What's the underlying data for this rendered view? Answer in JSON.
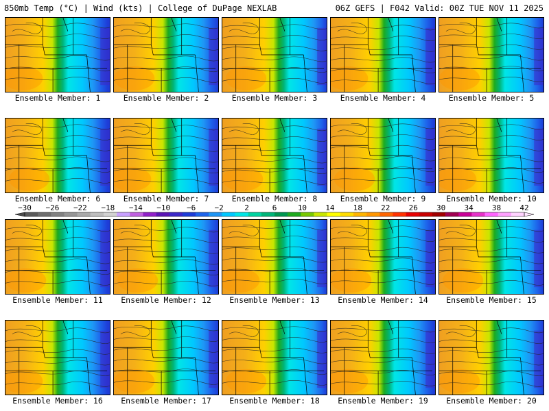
{
  "header": {
    "left": "850mb Temp (°C) | Wind (kts) | College of DuPage NEXLAB",
    "right": "06Z GEFS | F042 Valid: 00Z TUE NOV 11 2025"
  },
  "panel_label_prefix": "Ensemble Member: ",
  "members": [
    1,
    2,
    3,
    4,
    5,
    6,
    7,
    8,
    9,
    10,
    11,
    12,
    13,
    14,
    15,
    16,
    17,
    18,
    19,
    20
  ],
  "colorbar": {
    "ticks": [
      "-30",
      "-26",
      "-22",
      "-18",
      "-14",
      "-10",
      "-6",
      "-2",
      "2",
      "6",
      "10",
      "14",
      "18",
      "22",
      "26",
      "30",
      "34",
      "38",
      "42"
    ],
    "colors": [
      "#5a5a5a",
      "#6e6e6e",
      "#828282",
      "#969696",
      "#aaaaaa",
      "#bebebe",
      "#d2d2d2",
      "#c8a0ff",
      "#c060e0",
      "#9020c8",
      "#5a14b4",
      "#3c28c8",
      "#1e3cd7",
      "#1e64eb",
      "#1e96f5",
      "#00c8ff",
      "#00e6e6",
      "#00d2a0",
      "#00b478",
      "#009650",
      "#1eaa1e",
      "#78c800",
      "#c8e600",
      "#ffff00",
      "#ffdc00",
      "#ffb400",
      "#ff9600",
      "#ff6400",
      "#ff3200",
      "#e60000",
      "#c80000",
      "#a00000",
      "#a00050",
      "#c80096",
      "#e632c8",
      "#ff64ff",
      "#ffa0ff",
      "#ffd2ff"
    ]
  }
}
